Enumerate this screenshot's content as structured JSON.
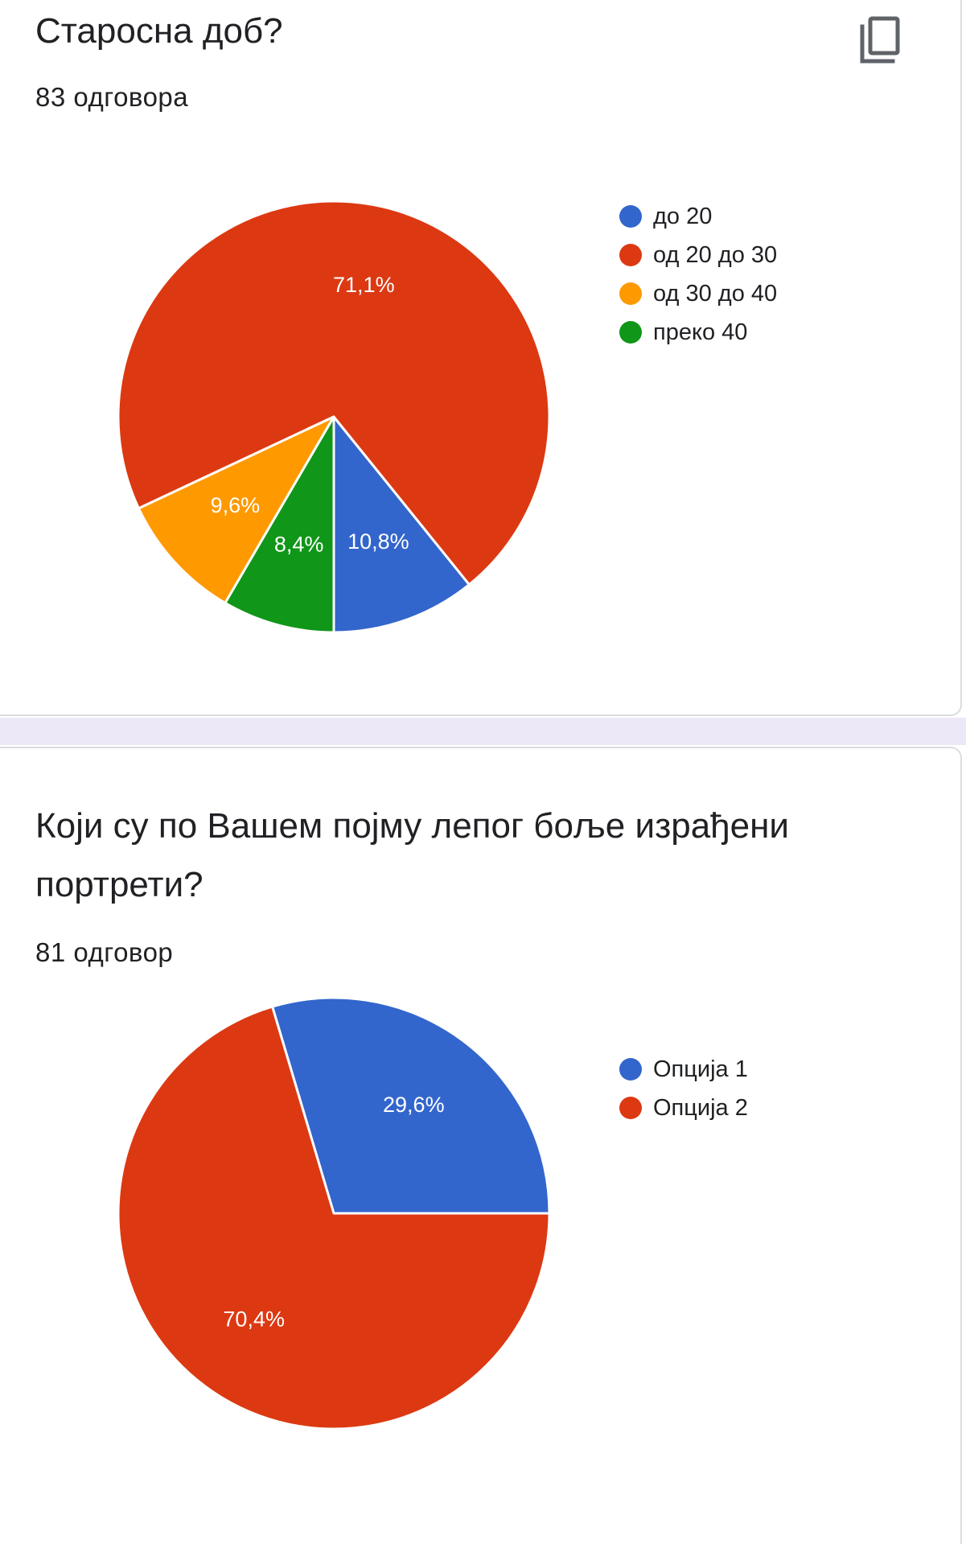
{
  "questions": [
    {
      "title": "Старосна доб?",
      "response_count": "83 одговора"
    },
    {
      "title": "Који су по Вашем појму лепог боље израђени портрети?",
      "response_count": "81 одговор"
    }
  ],
  "icons": {
    "copy": "copy-icon"
  },
  "chart_data": [
    {
      "type": "pie",
      "categories": [
        "до 20",
        "од 20 до 30",
        "од 30 до 40",
        "преко 40"
      ],
      "values": [
        10.8,
        71.1,
        9.6,
        8.4
      ],
      "labels": [
        "10,8%",
        "71,1%",
        "9,6%",
        "8,4%"
      ],
      "colors": [
        "#3366cc",
        "#dc3912",
        "#ff9900",
        "#109618"
      ],
      "legend_position": "right"
    },
    {
      "type": "pie",
      "categories": [
        "Опција 1",
        "Опција 2"
      ],
      "values": [
        29.6,
        70.4
      ],
      "labels": [
        "29,6%",
        "70,4%"
      ],
      "colors": [
        "#3366cc",
        "#dc3912"
      ],
      "legend_position": "right"
    }
  ]
}
